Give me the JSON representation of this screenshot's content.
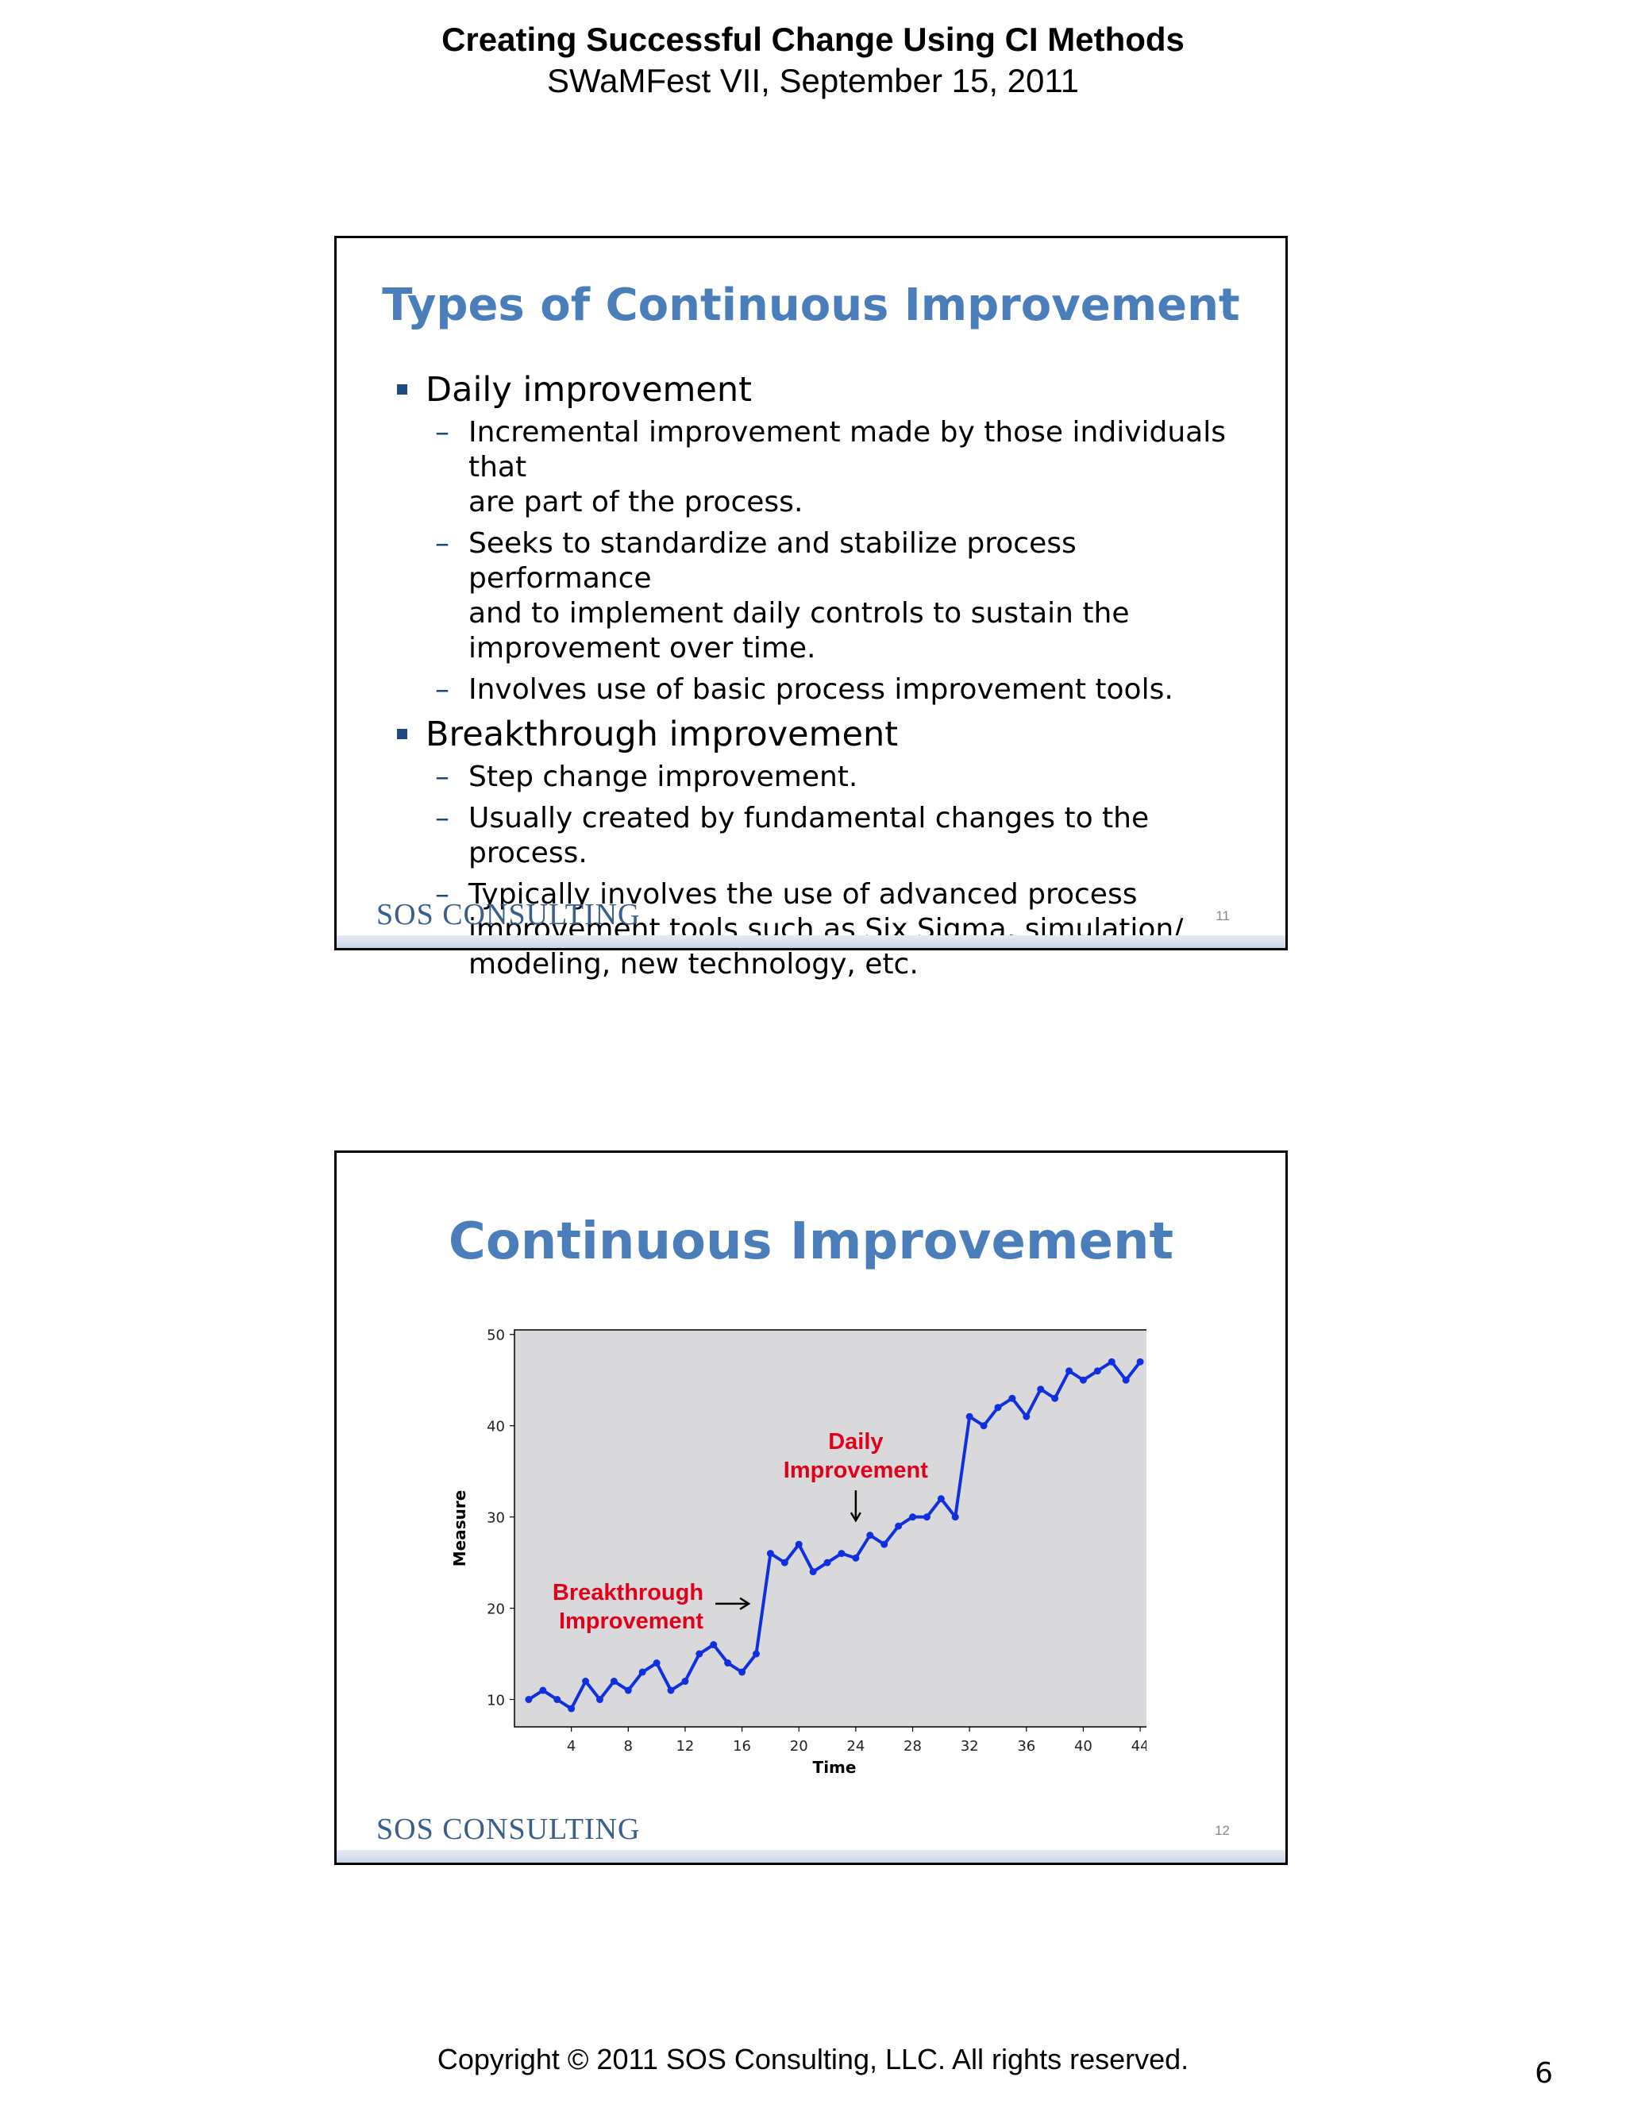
{
  "header": {
    "title": "Creating Successful Change Using CI Methods",
    "subtitle": "SWaMFest VII, September 15, 2011"
  },
  "slides": [
    {
      "title": "Types of Continuous Improvement",
      "bullets": [
        {
          "text": "Daily improvement",
          "sub": [
            [
              "Incremental improvement made by those individuals that",
              "are part of the process."
            ],
            [
              "Seeks to standardize and stabilize process performance",
              "and to implement daily controls to sustain the",
              "improvement over time."
            ],
            [
              "Involves use of basic process improvement tools."
            ]
          ]
        },
        {
          "text": "Breakthrough improvement",
          "sub": [
            [
              "Step change improvement."
            ],
            [
              "Usually created by fundamental changes to the process."
            ],
            [
              "Typically involves the use of advanced process",
              "improvement tools such as Six Sigma, simulation/",
              "modeling, new technology, etc."
            ]
          ]
        }
      ],
      "brand": "SOS CONSULTING",
      "number": "11"
    },
    {
      "title": "Continuous Improvement",
      "brand": "SOS CONSULTING",
      "number": "12"
    }
  ],
  "chart_data": {
    "type": "line",
    "title": "",
    "xlabel": "Time",
    "ylabel": "Measure",
    "xlim": [
      0,
      45
    ],
    "ylim": [
      7,
      50.5
    ],
    "x_ticks": [
      4,
      8,
      12,
      16,
      20,
      24,
      28,
      32,
      36,
      40,
      44
    ],
    "y_ticks": [
      10,
      20,
      30,
      40,
      50
    ],
    "grid": false,
    "series": [
      {
        "color": "#1030e0",
        "x": [
          1,
          2,
          3,
          4,
          5,
          6,
          7,
          8,
          9,
          10,
          11,
          12,
          13,
          14,
          15,
          16,
          17,
          18,
          19,
          20,
          21,
          22,
          23,
          24,
          25,
          26,
          27,
          28,
          29,
          30,
          31,
          32,
          33,
          34,
          35,
          36,
          37,
          38,
          39,
          40,
          41,
          42,
          43,
          44
        ],
        "y": [
          10,
          11,
          10,
          9,
          12,
          10,
          12,
          11,
          13,
          14,
          11,
          12,
          15,
          16,
          14,
          13,
          15,
          26,
          25,
          27,
          24,
          25,
          26,
          25.5,
          28,
          27,
          29,
          30,
          30,
          32,
          30,
          41,
          40,
          42,
          43,
          41,
          44,
          43,
          46,
          45,
          46,
          47,
          45,
          47
        ]
      }
    ],
    "annotations": [
      {
        "lines": [
          "Daily",
          "Improvement"
        ],
        "color": "#e0001a",
        "arrow": "down",
        "target": [
          24,
          27
        ]
      },
      {
        "lines": [
          "Breakthrough",
          "Improvement"
        ],
        "color": "#e0001a",
        "arrow": "right",
        "target": [
          17.2,
          20.5
        ]
      }
    ]
  },
  "footer": {
    "copyright": "Copyright © 2011  SOS Consulting, LLC. All rights reserved.",
    "page_number": "6"
  }
}
